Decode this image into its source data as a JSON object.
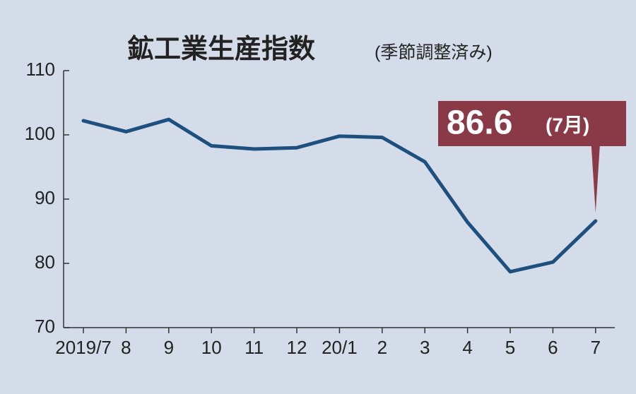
{
  "chart_data": {
    "type": "line",
    "title": "鉱工業生産指数",
    "subtitle": "(季節調整済み)",
    "categories": [
      "2019/7",
      "8",
      "9",
      "10",
      "11",
      "12",
      "20/1",
      "2",
      "3",
      "4",
      "5",
      "6",
      "7"
    ],
    "series": [
      {
        "color": "#1d4f7f",
        "values": [
          102.2,
          100.5,
          102.4,
          98.3,
          97.8,
          98.0,
          99.8,
          99.6,
          95.8,
          86.4,
          78.7,
          80.2,
          86.6
        ]
      }
    ],
    "value_labels": [
      null,
      null,
      null,
      null,
      null,
      null,
      null,
      null,
      null,
      null,
      null,
      null,
      "86.6"
    ],
    "annotation_note": "(7月)",
    "annotation_color": "#8a3a46",
    "ylim": [
      70,
      110
    ],
    "yticks": [
      70,
      80,
      90,
      100,
      110
    ]
  }
}
